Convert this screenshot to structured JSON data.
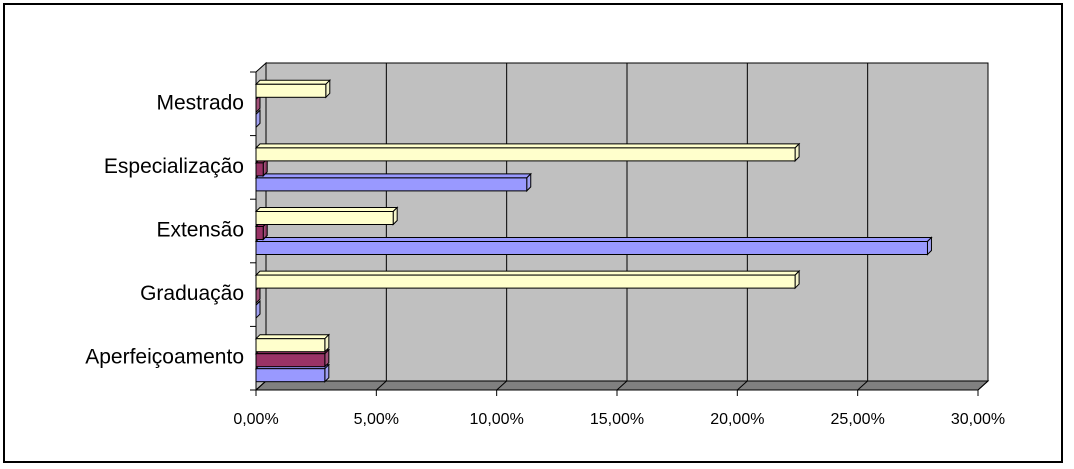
{
  "chart_data": {
    "type": "bar3d-horizontal",
    "categories": [
      "Aperfeiçoamento",
      "Graduação",
      "Extensão",
      "Especialização",
      "Mestrado"
    ],
    "series": [
      {
        "color": "#9999ff",
        "values": [
          2.86,
          0,
          27.9,
          11.25,
          0
        ]
      },
      {
        "color": "#993366",
        "values": [
          2.86,
          0,
          0.3,
          0.3,
          0
        ]
      },
      {
        "color": "#ffffcc",
        "values": [
          2.86,
          22.4,
          5.7,
          22.4,
          2.9
        ]
      }
    ],
    "xlim": [
      0,
      30
    ],
    "xticks": [
      {
        "value": 0,
        "label": "0,00%"
      },
      {
        "value": 5,
        "label": "5,00%"
      },
      {
        "value": 10,
        "label": "10,00%"
      },
      {
        "value": 15,
        "label": "15,00%"
      },
      {
        "value": 20,
        "label": "20,00%"
      },
      {
        "value": 25,
        "label": "25,00%"
      },
      {
        "value": 30,
        "label": "30,00%"
      }
    ],
    "grid": true,
    "wall_color": "#c0c0c0"
  }
}
